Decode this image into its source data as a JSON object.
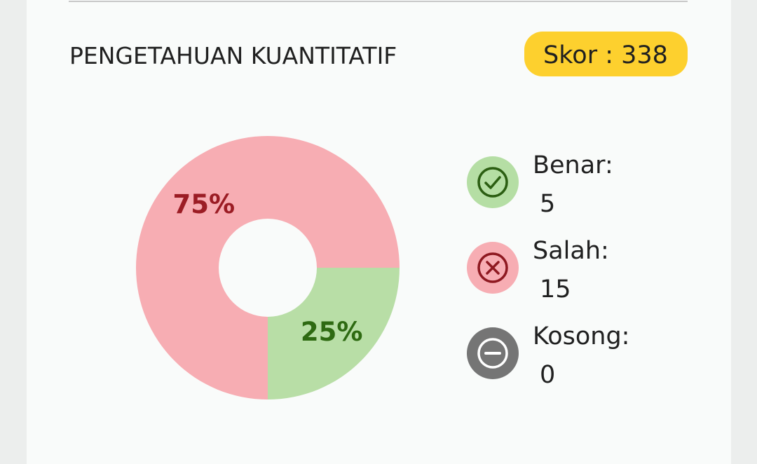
{
  "header": {
    "title": "PENGETAHUAN KUANTITATIF",
    "score": "Skor : 338"
  },
  "chart_data": {
    "type": "donut",
    "values": [
      25,
      75
    ],
    "value_labels": [
      "25%",
      "75%"
    ],
    "colors": [
      "#b8dea6",
      "#f7adb3"
    ],
    "label_colors": [
      "#2e6a12",
      "#9b1c24"
    ]
  },
  "legend": {
    "items": [
      {
        "label": "Benar:",
        "value": 5
      },
      {
        "label": "Salah:",
        "value": 15
      },
      {
        "label": "Kosong:",
        "value": 0
      }
    ]
  }
}
